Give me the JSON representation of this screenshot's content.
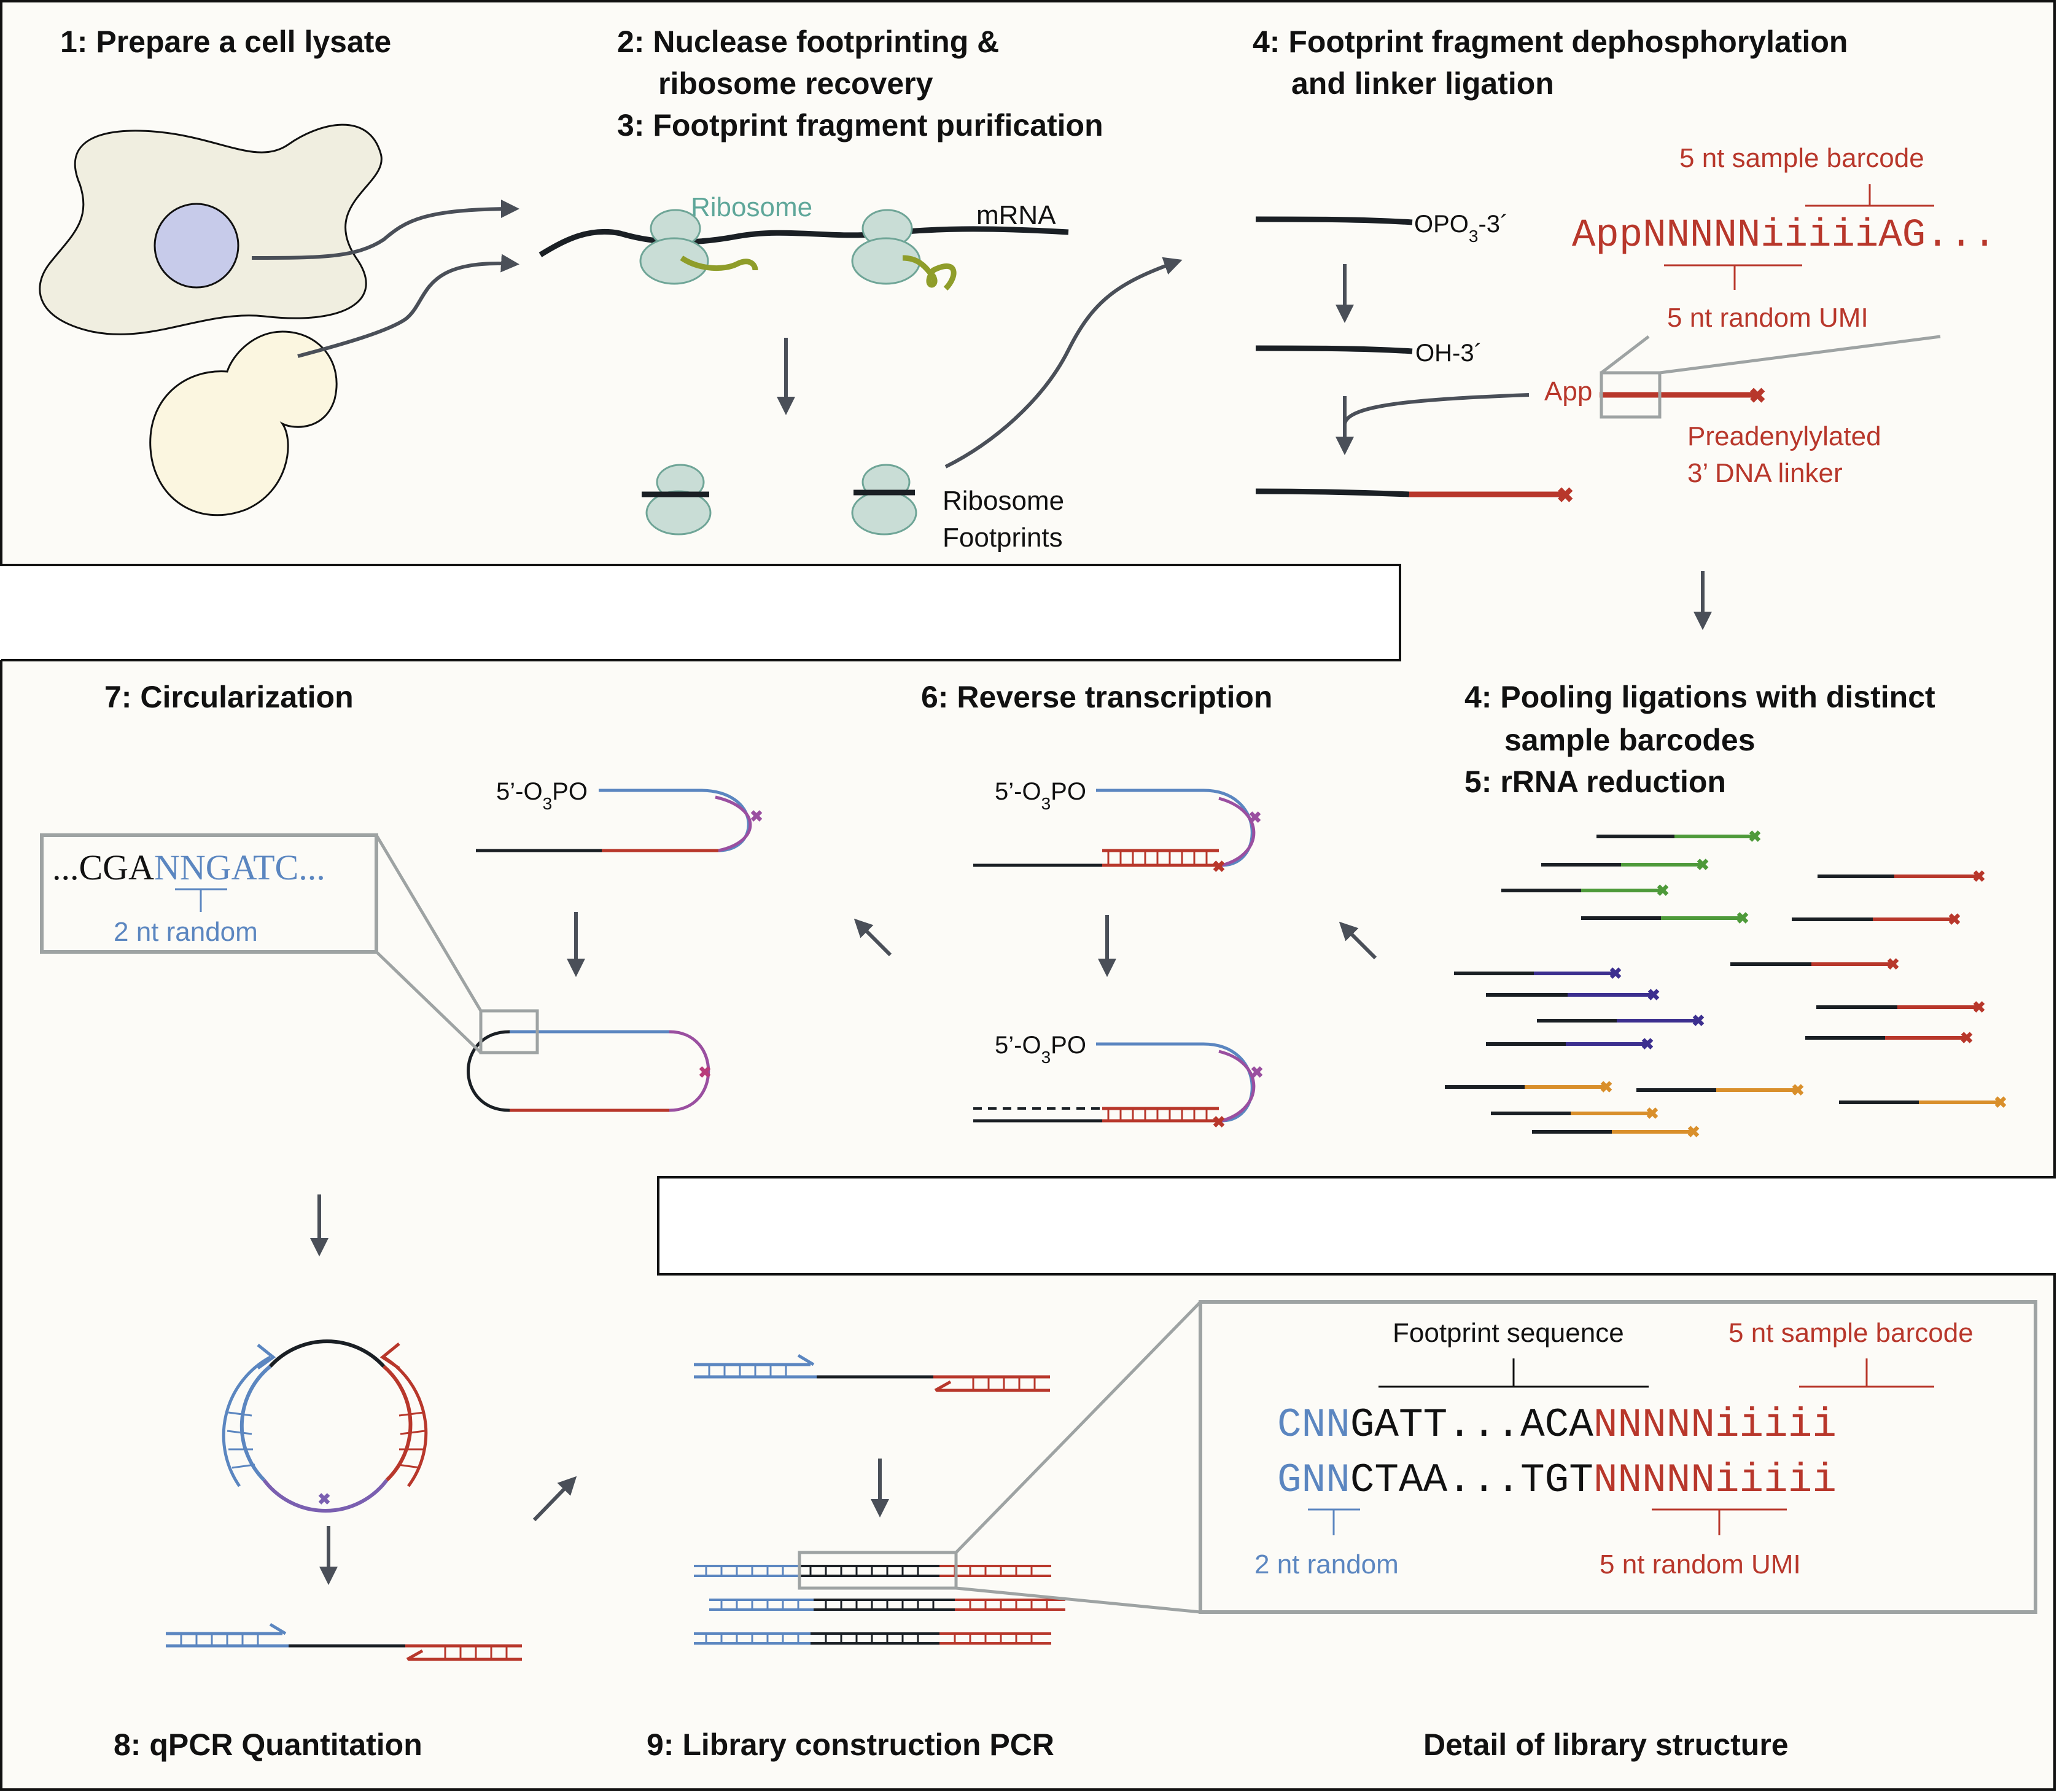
{
  "colors": {
    "background_panel": "#fcfbf7",
    "outline": "#111111",
    "arrow": "#4a4f58",
    "strand_black": "#1a1f24",
    "linker_red": "#b8372b",
    "primer_blue": "#5b86c0",
    "primer_purple": "#7a5fb0",
    "magenta": "#b83c7a",
    "green": "#4e9a3a",
    "indigo": "#3c2f8f",
    "orange": "#d98f2b",
    "ribosome": "#c9ddd6",
    "ribosome_stroke": "#6fa597",
    "peptide": "#8f9d2a",
    "cell_mammal": "#f0eee0",
    "nucleus": "#c7cbea",
    "yeast": "#fbf6e0",
    "callout_gray": "#9ea3a3"
  },
  "steps": {
    "s1": "1: Prepare a cell lysate",
    "s2a": "2: Nuclease footprinting &",
    "s2b": "ribosome recovery",
    "s3": "3: Footprint fragment purification",
    "s4a": "4: Footprint fragment dephosphorylation",
    "s4b": "and linker ligation",
    "s4pool_a": "4: Pooling ligations with distinct",
    "s4pool_b": "sample barcodes",
    "s5": "5: rRNA reduction",
    "s6": "6: Reverse transcription",
    "s7": "7: Circularization",
    "s8": "8: qPCR Quantitation",
    "s9": "9: Library construction PCR",
    "detail": "Detail of library structure"
  },
  "labels": {
    "ribosome": "Ribosome",
    "mrna": "mRNA",
    "ribo_fp_1": "Ribosome",
    "ribo_fp_2": "Footprints",
    "opo3": "OPO",
    "opo3_sub": "3",
    "opo3_tail": "-3´",
    "oh3": "OH-3´",
    "app": "App",
    "sample_barcode": "5 nt sample barcode",
    "random_umi": "5 nt random UMI",
    "linker_seq_red": "AppNNNNNiiiiiAG...",
    "preaden_1": "Preadenylylated",
    "preaden_2": "3’ DNA linker",
    "five_prime": "5’-O",
    "five_prime_sub": "3",
    "five_prime_tail": "PO",
    "circ_seq_black": "...CGA",
    "circ_seq_blue": "NNGATC...",
    "two_nt_random": "2 nt random",
    "footprint_sequence": "Footprint sequence",
    "detail_top_blue": "CNN",
    "detail_top_black": "GATT...ACA",
    "detail_top_red": "NNNNNiiiii",
    "detail_bot_blue": "GNN",
    "detail_bot_black": "CTAA...TGT",
    "detail_bot_red": "NNNNNiiiii",
    "detail_sample_barcode": "5 nt sample barcode",
    "detail_random_umi": "5 nt random UMI",
    "detail_two_nt": "2 nt random"
  }
}
